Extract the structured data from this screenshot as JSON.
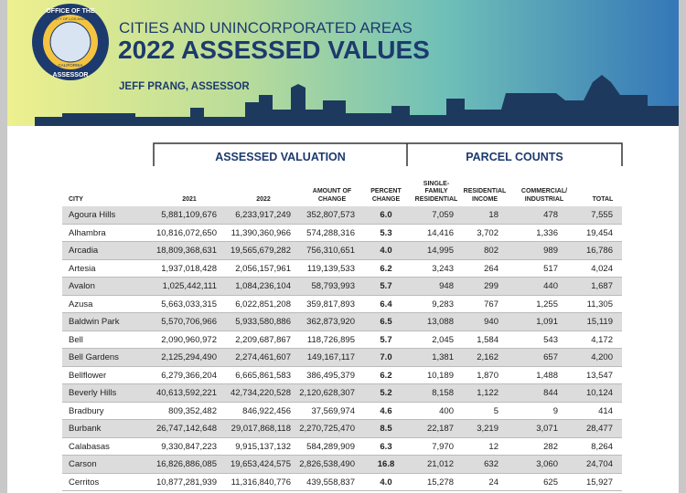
{
  "seal": {
    "top": "OFFICE OF THE",
    "ring": "COUNTY OF LOS ANGELES",
    "state": "CALIFORNIA",
    "bottom": "ASSESSOR"
  },
  "header": {
    "subtitle": "CITIES AND UNINCORPORATED AREAS",
    "title": "2022 ASSESSED VALUES",
    "author": "JEFF PRANG, ASSESSOR"
  },
  "table": {
    "groups": [
      "ASSESSED VALUATION",
      "PARCEL COUNTS"
    ],
    "columns": [
      [
        "CITY"
      ],
      [
        "2021"
      ],
      [
        "2022"
      ],
      [
        "AMOUNT OF",
        "CHANGE"
      ],
      [
        "PERCENT",
        "CHANGE"
      ],
      [
        "SINGLE-",
        "FAMILY",
        "RESIDENTIAL"
      ],
      [
        "RESIDENTIAL",
        "INCOME"
      ],
      [
        "COMMERCIAL/",
        "INDUSTRIAL"
      ],
      [
        "TOTAL"
      ]
    ],
    "rows": [
      [
        "Agoura Hills",
        "5,881,109,676",
        "6,233,917,249",
        "352,807,573",
        "6.0",
        "7,059",
        "18",
        "478",
        "7,555"
      ],
      [
        "Alhambra",
        "10,816,072,650",
        "11,390,360,966",
        "574,288,316",
        "5.3",
        "14,416",
        "3,702",
        "1,336",
        "19,454"
      ],
      [
        "Arcadia",
        "18,809,368,631",
        "19,565,679,282",
        "756,310,651",
        "4.0",
        "14,995",
        "802",
        "989",
        "16,786"
      ],
      [
        "Artesia",
        "1,937,018,428",
        "2,056,157,961",
        "119,139,533",
        "6.2",
        "3,243",
        "264",
        "517",
        "4,024"
      ],
      [
        "Avalon",
        "1,025,442,111",
        "1,084,236,104",
        "58,793,993",
        "5.7",
        "948",
        "299",
        "440",
        "1,687"
      ],
      [
        "Azusa",
        "5,663,033,315",
        "6,022,851,208",
        "359,817,893",
        "6.4",
        "9,283",
        "767",
        "1,255",
        "11,305"
      ],
      [
        "Baldwin Park",
        "5,570,706,966",
        "5,933,580,886",
        "362,873,920",
        "6.5",
        "13,088",
        "940",
        "1,091",
        "15,119"
      ],
      [
        "Bell",
        "2,090,960,972",
        "2,209,687,867",
        "118,726,895",
        "5.7",
        "2,045",
        "1,584",
        "543",
        "4,172"
      ],
      [
        "Bell Gardens",
        "2,125,294,490",
        "2,274,461,607",
        "149,167,117",
        "7.0",
        "1,381",
        "2,162",
        "657",
        "4,200"
      ],
      [
        "Bellflower",
        "6,279,366,204",
        "6,665,861,583",
        "386,495,379",
        "6.2",
        "10,189",
        "1,870",
        "1,488",
        "13,547"
      ],
      [
        "Beverly Hills",
        "40,613,592,221",
        "42,734,220,528",
        "2,120,628,307",
        "5.2",
        "8,158",
        "1,122",
        "844",
        "10,124"
      ],
      [
        "Bradbury",
        "809,352,482",
        "846,922,456",
        "37,569,974",
        "4.6",
        "400",
        "5",
        "9",
        "414"
      ],
      [
        "Burbank",
        "26,747,142,648",
        "29,017,868,118",
        "2,270,725,470",
        "8.5",
        "22,187",
        "3,219",
        "3,071",
        "28,477"
      ],
      [
        "Calabasas",
        "9,330,847,223",
        "9,915,137,132",
        "584,289,909",
        "6.3",
        "7,970",
        "12",
        "282",
        "8,264"
      ],
      [
        "Carson",
        "16,826,886,085",
        "19,653,424,575",
        "2,826,538,490",
        "16.8",
        "21,012",
        "632",
        "3,060",
        "24,704"
      ],
      [
        "Cerritos",
        "10,877,281,939",
        "11,316,840,776",
        "439,558,837",
        "4.0",
        "15,278",
        "24",
        "625",
        "15,927"
      ]
    ]
  }
}
